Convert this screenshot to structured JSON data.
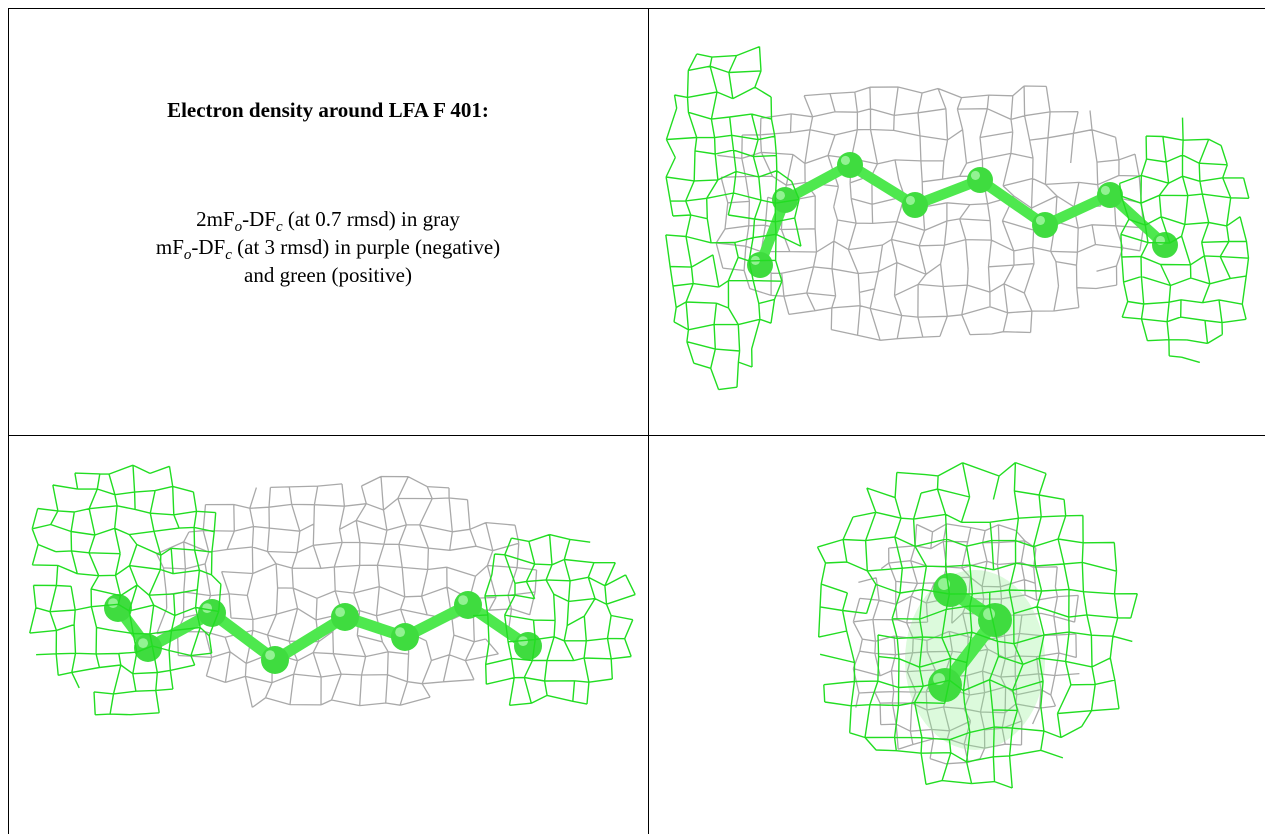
{
  "panel": {
    "title": "Electron density around LFA F 401:",
    "caption": {
      "line1": [
        "2mF",
        "o",
        "-DF",
        "c",
        " (at 0.7 rmsd) in gray"
      ],
      "line2": [
        "mF",
        "o",
        "-DF",
        "c",
        " (at 3 rmsd) in purple (negative)"
      ],
      "line3": "and green (positive)"
    }
  }
}
